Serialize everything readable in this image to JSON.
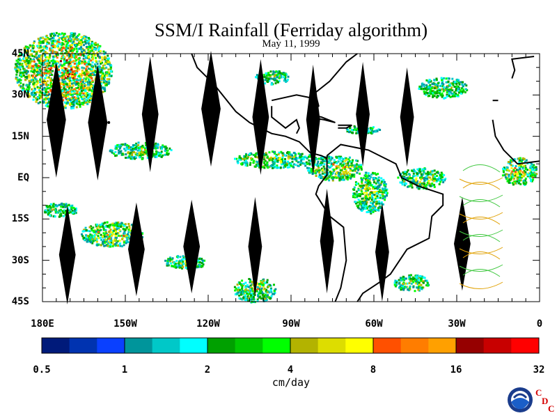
{
  "title": "SSM/I Rainfall (Ferriday algorithm)",
  "subtitle": "May 11, 1999",
  "map": {
    "lat_labels": [
      "45N",
      "30N",
      "15N",
      "EQ",
      "15S",
      "30S",
      "45S"
    ],
    "lat_values": [
      45,
      30,
      15,
      0,
      -15,
      -30,
      -45
    ],
    "lon_labels": [
      "180E",
      "150W",
      "120W",
      "90W",
      "60W",
      "30W",
      "0"
    ],
    "lon_values": [
      -180,
      -150,
      -120,
      -90,
      -60,
      -30,
      0
    ],
    "lon_range": [
      -180,
      0
    ],
    "lat_range": [
      -45,
      45
    ]
  },
  "colorbar": {
    "tick_labels": [
      "0.5",
      "1",
      "2",
      "4",
      "8",
      "16",
      "32"
    ],
    "units": "cm/day",
    "colors": [
      "#001a7a",
      "#0033b0",
      "#0a40ff",
      "#00959b",
      "#00c8c8",
      "#00ffff",
      "#00a000",
      "#00c800",
      "#00ff00",
      "#b3b300",
      "#dddd00",
      "#ffff00",
      "#ff5000",
      "#ff7d00",
      "#ffa000",
      "#960000",
      "#c80000",
      "#ff0000"
    ]
  },
  "logos": {
    "agency": "NOAA",
    "lab": "CDC"
  }
}
